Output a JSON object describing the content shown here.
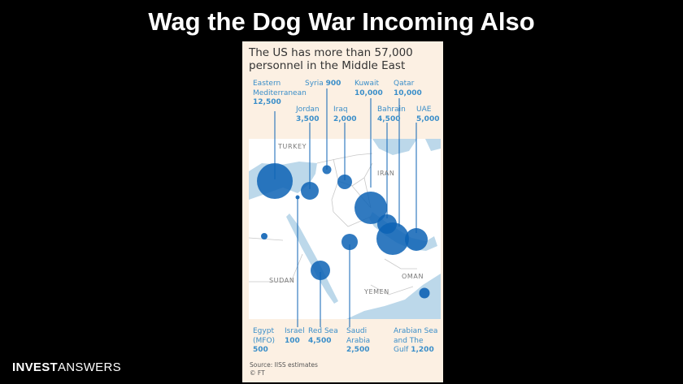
{
  "slide": {
    "title": "Wag the Dog War Incoming Also",
    "brand_bold": "INVEST",
    "brand_light": "ANSWERS"
  },
  "map": {
    "title": "The US has more than 57,000 personnel in the Middle East",
    "countries": {
      "turkey": "TURKEY",
      "iran": "IRAN",
      "sudan": "SUDAN",
      "yemen": "YEMEN",
      "oman": "OMAN"
    },
    "locations": {
      "eastern_med": {
        "name1": "Eastern",
        "name2": "Mediterranean",
        "value": "12,500"
      },
      "syria": {
        "name": "Syria",
        "value": "900"
      },
      "jordan": {
        "name": "Jordan",
        "value": "3,500"
      },
      "iraq": {
        "name": "Iraq",
        "value": "2,000"
      },
      "kuwait": {
        "name": "Kuwait",
        "value": "10,000"
      },
      "qatar": {
        "name": "Qatar",
        "value": "10,000"
      },
      "bahrain": {
        "name": "Bahrain",
        "value": "4,500"
      },
      "uae": {
        "name": "UAE",
        "value": "5,000"
      },
      "egypt": {
        "name1": "Egypt",
        "name2": "(MFO)",
        "value": "500"
      },
      "israel": {
        "name": "Israel",
        "value": "100"
      },
      "red_sea": {
        "name": "Red Sea",
        "value": "4,500"
      },
      "saudi": {
        "name1": "Saudi",
        "name2": "Arabia",
        "value": "2,500"
      },
      "arabian_sea": {
        "name1": "Arabian Sea",
        "name2": "and The",
        "name3": "Gulf",
        "value": "1,200"
      }
    },
    "source_line": "Source: IISS estimates",
    "credit": "© FT",
    "colors": {
      "land": "#ffffff",
      "water": "#bcd8ea",
      "bubble": "#0d63b5",
      "label": "#3a8ec9",
      "panel": "#fcf0e3"
    }
  }
}
